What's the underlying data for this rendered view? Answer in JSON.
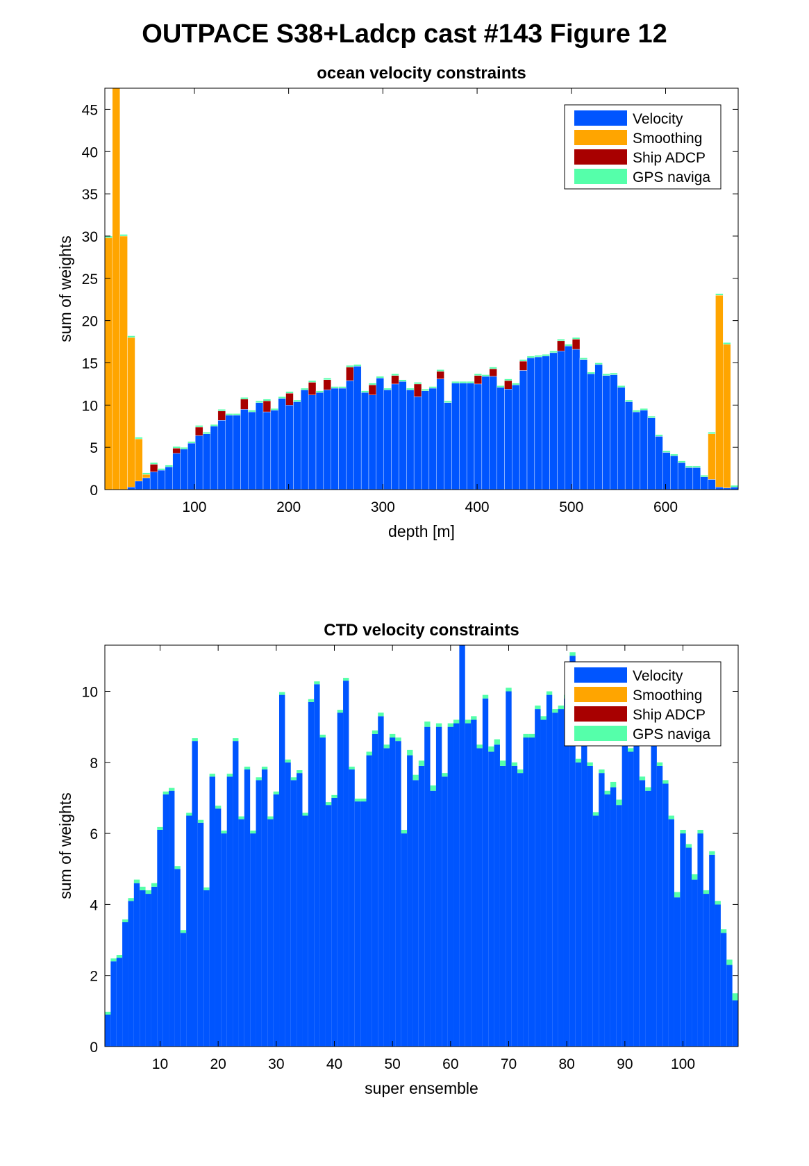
{
  "figure": {
    "title": "OUTPACE S38+Ladcp cast #143  Figure 12"
  },
  "colors": {
    "velocity": "#0055ff",
    "smoothing": "#ffa500",
    "ship_adcp": "#a80000",
    "gps": "#55ffaa",
    "bar_edge": "#ffffff"
  },
  "legend": {
    "items": [
      "Velocity",
      "Smoothing",
      "Ship ADCP",
      "GPS naviga"
    ],
    "placement": "top-right"
  },
  "chart_data": [
    {
      "type": "bar",
      "stacked": true,
      "title": "ocean velocity constraints",
      "xlabel": "depth [m]",
      "ylabel": "sum of weights",
      "xlim": [
        5,
        677
      ],
      "ylim": [
        0,
        47.5
      ],
      "xticks": [
        100,
        200,
        300,
        400,
        500,
        600
      ],
      "yticks": [
        0,
        5,
        10,
        15,
        20,
        25,
        30,
        35,
        40,
        45
      ],
      "bin_width": 8,
      "x": [
        9,
        17,
        25,
        33,
        41,
        49,
        57,
        65,
        73,
        81,
        89,
        97,
        105,
        113,
        121,
        129,
        137,
        145,
        153,
        161,
        169,
        177,
        185,
        193,
        201,
        209,
        217,
        225,
        233,
        241,
        249,
        257,
        265,
        273,
        281,
        289,
        297,
        305,
        313,
        321,
        329,
        337,
        345,
        353,
        361,
        369,
        377,
        385,
        393,
        401,
        409,
        417,
        425,
        433,
        441,
        449,
        457,
        465,
        473,
        481,
        489,
        497,
        505,
        513,
        521,
        529,
        537,
        545,
        553,
        561,
        569,
        577,
        585,
        593,
        601,
        609,
        617,
        625,
        633,
        641,
        649,
        657,
        665,
        673
      ],
      "series": [
        {
          "name": "Velocity",
          "values": [
            0,
            0,
            0,
            0.3,
            1.0,
            1.4,
            2.1,
            2.3,
            2.7,
            4.3,
            4.8,
            5.5,
            6.4,
            6.6,
            7.5,
            8.2,
            8.8,
            8.8,
            9.5,
            9.2,
            10.3,
            9.2,
            9.4,
            10.8,
            10.0,
            10.4,
            11.8,
            11.2,
            11.5,
            11.8,
            12.0,
            12.0,
            12.9,
            14.6,
            11.5,
            11.2,
            13.2,
            11.8,
            12.5,
            12.8,
            11.8,
            11.0,
            11.7,
            12.0,
            13.1,
            10.3,
            12.6,
            12.6,
            12.6,
            12.5,
            13.4,
            13.4,
            12.1,
            11.9,
            12.4,
            14.1,
            15.6,
            15.7,
            15.8,
            16.2,
            16.4,
            17.0,
            16.6,
            15.4,
            13.7,
            14.8,
            13.5,
            13.6,
            12.1,
            10.4,
            9.2,
            9.4,
            8.5,
            6.3,
            4.4,
            4.0,
            3.2,
            2.6,
            2.6,
            1.5,
            1.2,
            0.3,
            0.2,
            0.3
          ]
        },
        {
          "name": "Smoothing",
          "values": [
            29.8,
            47.7,
            30.0,
            17.7,
            5.0,
            0.4,
            0,
            0,
            0,
            0,
            0,
            0,
            0,
            0,
            0,
            0,
            0,
            0,
            0,
            0,
            0,
            0,
            0,
            0,
            0,
            0,
            0,
            0,
            0,
            0,
            0,
            0,
            0,
            0,
            0,
            0,
            0,
            0,
            0,
            0,
            0,
            0,
            0,
            0,
            0,
            0,
            0,
            0,
            0,
            0,
            0,
            0,
            0,
            0,
            0,
            0,
            0,
            0,
            0,
            0,
            0,
            0,
            0,
            0,
            0,
            0,
            0,
            0,
            0,
            0,
            0,
            0,
            0,
            0,
            0,
            0,
            0,
            0,
            0,
            0,
            5.4,
            22.7,
            17.0,
            0
          ]
        },
        {
          "name": "Ship ADCP",
          "values": [
            0,
            0,
            0,
            0,
            0,
            0,
            0.9,
            0,
            0,
            0.6,
            0,
            0,
            1.0,
            0,
            0,
            1.1,
            0,
            0,
            1.2,
            0,
            0,
            1.3,
            0,
            0,
            1.4,
            0,
            0,
            1.5,
            0,
            1.2,
            0,
            0,
            1.6,
            0,
            0,
            1.2,
            0,
            0,
            1.0,
            0,
            0,
            1.5,
            0,
            0,
            0.9,
            0,
            0,
            0,
            0,
            1.0,
            0,
            0.9,
            0,
            1.0,
            0,
            1.1,
            0,
            0,
            0,
            0,
            1.2,
            0,
            1.2,
            0,
            0,
            0,
            0,
            0,
            0,
            0,
            0,
            0,
            0,
            0,
            0,
            0,
            0,
            0,
            0,
            0,
            0,
            0,
            0,
            0
          ]
        },
        {
          "name": "GPS naviga",
          "values": [
            0.2,
            0.2,
            0.2,
            0.2,
            0.2,
            0.2,
            0.2,
            0.2,
            0.2,
            0.2,
            0.2,
            0.2,
            0.2,
            0.2,
            0.2,
            0.2,
            0.2,
            0.2,
            0.2,
            0.2,
            0.2,
            0.2,
            0.2,
            0.2,
            0.2,
            0.2,
            0.2,
            0.2,
            0.2,
            0.2,
            0.2,
            0.2,
            0.2,
            0.2,
            0.2,
            0.2,
            0.2,
            0.2,
            0.2,
            0.2,
            0.2,
            0.2,
            0.2,
            0.2,
            0.2,
            0.2,
            0.2,
            0.2,
            0.2,
            0.2,
            0.2,
            0.2,
            0.2,
            0.2,
            0.2,
            0.2,
            0.2,
            0.2,
            0.2,
            0.2,
            0.2,
            0.2,
            0.2,
            0.2,
            0.2,
            0.2,
            0.2,
            0.2,
            0.2,
            0.2,
            0.2,
            0.2,
            0.2,
            0.2,
            0.2,
            0.2,
            0.2,
            0.2,
            0.2,
            0.2,
            0.2,
            0.2,
            0.2,
            0.2
          ]
        }
      ]
    },
    {
      "type": "bar",
      "stacked": true,
      "title": "CTD velocity constraints",
      "xlabel": "super ensemble",
      "ylabel": "sum of weights",
      "xlim": [
        0.5,
        109.5
      ],
      "ylim": [
        0,
        11.3
      ],
      "xticks": [
        10,
        20,
        30,
        40,
        50,
        60,
        70,
        80,
        90,
        100
      ],
      "yticks": [
        0,
        2,
        4,
        6,
        8,
        10
      ],
      "bin_width": 1,
      "x": [
        1,
        2,
        3,
        4,
        5,
        6,
        7,
        8,
        9,
        10,
        11,
        12,
        13,
        14,
        15,
        16,
        17,
        18,
        19,
        20,
        21,
        22,
        23,
        24,
        25,
        26,
        27,
        28,
        29,
        30,
        31,
        32,
        33,
        34,
        35,
        36,
        37,
        38,
        39,
        40,
        41,
        42,
        43,
        44,
        45,
        46,
        47,
        48,
        49,
        50,
        51,
        52,
        53,
        54,
        55,
        56,
        57,
        58,
        59,
        60,
        61,
        62,
        63,
        64,
        65,
        66,
        67,
        68,
        69,
        70,
        71,
        72,
        73,
        74,
        75,
        76,
        77,
        78,
        79,
        80,
        81,
        82,
        83,
        84,
        85,
        86,
        87,
        88,
        89,
        90,
        91,
        92,
        93,
        94,
        95,
        96,
        97,
        98,
        99,
        100,
        101,
        102,
        103,
        104,
        105,
        106,
        107,
        108,
        109
      ],
      "series": [
        {
          "name": "Velocity",
          "values": [
            0.9,
            2.4,
            2.5,
            3.5,
            4.1,
            4.6,
            4.4,
            4.3,
            4.5,
            6.1,
            7.1,
            7.2,
            5.0,
            3.2,
            6.5,
            8.6,
            6.3,
            4.4,
            7.6,
            6.7,
            6.0,
            7.6,
            8.6,
            6.4,
            7.8,
            6.0,
            7.5,
            7.8,
            6.4,
            7.1,
            9.9,
            8.0,
            7.5,
            7.7,
            6.5,
            9.7,
            10.2,
            8.7,
            6.8,
            7.0,
            9.4,
            10.3,
            7.8,
            6.9,
            6.9,
            8.2,
            8.8,
            9.3,
            8.4,
            8.7,
            8.6,
            6.0,
            8.2,
            7.5,
            7.9,
            9.0,
            7.2,
            9.0,
            7.6,
            9.0,
            9.1,
            11.3,
            9.1,
            9.2,
            8.4,
            9.8,
            8.3,
            8.5,
            7.9,
            10.0,
            7.9,
            7.7,
            8.7,
            8.7,
            9.5,
            9.2,
            9.9,
            9.4,
            9.5,
            9.8,
            11.0,
            8.0,
            8.6,
            7.9,
            6.5,
            7.7,
            7.1,
            7.3,
            6.8,
            9.0,
            8.3,
            8.8,
            7.5,
            7.2,
            8.6,
            7.9,
            7.4,
            6.4,
            4.2,
            6.0,
            5.6,
            4.7,
            6.0,
            4.3,
            5.4,
            4.0,
            3.2,
            2.3,
            1.3
          ]
        },
        {
          "name": "Smoothing",
          "values": [
            0,
            0,
            0,
            0,
            0,
            0,
            0,
            0,
            0,
            0,
            0,
            0,
            0,
            0,
            0,
            0,
            0,
            0,
            0,
            0,
            0,
            0,
            0,
            0,
            0,
            0,
            0,
            0,
            0,
            0,
            0,
            0,
            0,
            0,
            0,
            0,
            0,
            0,
            0,
            0,
            0,
            0,
            0,
            0,
            0,
            0,
            0,
            0,
            0,
            0,
            0,
            0,
            0,
            0,
            0,
            0,
            0,
            0,
            0,
            0,
            0,
            0,
            0,
            0,
            0,
            0,
            0,
            0,
            0,
            0,
            0,
            0,
            0,
            0,
            0,
            0,
            0,
            0,
            0,
            0,
            0,
            0,
            0,
            0,
            0,
            0,
            0,
            0,
            0,
            0,
            0,
            0,
            0,
            0,
            0,
            0,
            0,
            0,
            0,
            0,
            0,
            0,
            0,
            0,
            0,
            0,
            0,
            0,
            0
          ]
        },
        {
          "name": "Ship ADCP",
          "values": [
            0,
            0,
            0,
            0,
            0,
            0,
            0,
            0,
            0,
            0,
            0,
            0,
            0,
            0,
            0,
            0,
            0,
            0,
            0,
            0,
            0,
            0,
            0,
            0,
            0,
            0,
            0,
            0,
            0,
            0,
            0,
            0,
            0,
            0,
            0,
            0,
            0,
            0,
            0,
            0,
            0,
            0,
            0,
            0,
            0,
            0,
            0,
            0,
            0,
            0,
            0,
            0,
            0,
            0,
            0,
            0,
            0,
            0,
            0,
            0,
            0,
            0,
            0,
            0,
            0,
            0,
            0,
            0,
            0,
            0,
            0,
            0,
            0,
            0,
            0,
            0,
            0,
            0,
            0,
            0,
            0,
            0,
            0,
            0,
            0,
            0,
            0,
            0,
            0,
            0,
            0,
            0,
            0,
            0,
            0,
            0,
            0,
            0,
            0,
            0,
            0,
            0,
            0,
            0,
            0,
            0,
            0,
            0,
            0
          ]
        },
        {
          "name": "GPS naviga",
          "values": [
            0.08,
            0.08,
            0.08,
            0.08,
            0.08,
            0.1,
            0.1,
            0.1,
            0.1,
            0.08,
            0.08,
            0.08,
            0.08,
            0.08,
            0.08,
            0.08,
            0.08,
            0.08,
            0.08,
            0.08,
            0.08,
            0.08,
            0.08,
            0.08,
            0.08,
            0.08,
            0.08,
            0.08,
            0.08,
            0.08,
            0.08,
            0.08,
            0.08,
            0.08,
            0.08,
            0.08,
            0.08,
            0.08,
            0.08,
            0.08,
            0.08,
            0.08,
            0.08,
            0.08,
            0.08,
            0.1,
            0.1,
            0.1,
            0.1,
            0.1,
            0.1,
            0.1,
            0.15,
            0.15,
            0.15,
            0.15,
            0.15,
            0.1,
            0.1,
            0.1,
            0.1,
            0.1,
            0.1,
            0.1,
            0.1,
            0.1,
            0.15,
            0.15,
            0.15,
            0.1,
            0.1,
            0.1,
            0.1,
            0.1,
            0.1,
            0.1,
            0.1,
            0.1,
            0.1,
            0.1,
            0.1,
            0.1,
            0.1,
            0.1,
            0.1,
            0.1,
            0.1,
            0.15,
            0.15,
            0.1,
            0.1,
            0.1,
            0.1,
            0.1,
            0.1,
            0.1,
            0.1,
            0.1,
            0.15,
            0.1,
            0.1,
            0.15,
            0.1,
            0.1,
            0.1,
            0.1,
            0.1,
            0.15,
            0.2
          ]
        }
      ]
    }
  ]
}
